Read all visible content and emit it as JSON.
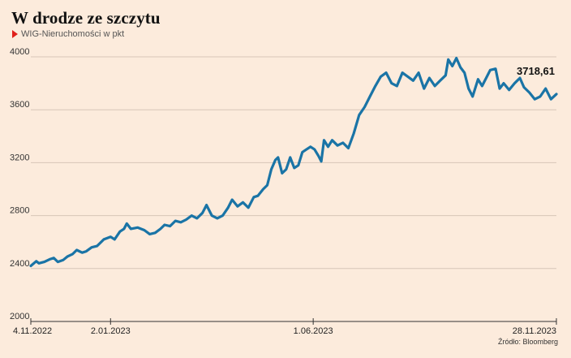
{
  "colors": {
    "background": "#fcebdc",
    "line": "#1a74a6",
    "grid": "#d7c6b8",
    "marker": "#e0201b"
  },
  "marker_icon": "red-triangle-icon",
  "chart_data": {
    "type": "line",
    "title": "W drodze ze szczytu",
    "subtitle": "WIG-Nieruchomości w pkt",
    "source": "Źródło: Bloomberg",
    "ylim": [
      2000,
      4000
    ],
    "yticks": [
      "4000",
      "3600",
      "3200",
      "2800",
      "2400",
      "2000"
    ],
    "ytick_values": [
      4000,
      3600,
      3200,
      2800,
      2400,
      2000
    ],
    "xlim": [
      "2022-11-04",
      "2023-11-28"
    ],
    "xticks": [
      {
        "label": "4.11.2022",
        "date": "2022-11-04"
      },
      {
        "label": "2.01.2023",
        "date": "2023-01-02"
      },
      {
        "label": "1.06.2023",
        "date": "2023-06-01"
      },
      {
        "label": "28.11.2023",
        "date": "2023-11-28"
      }
    ],
    "grid": true,
    "last_value_label": "3718,61",
    "series": [
      {
        "values": [
          {
            "x": "2022-11-04",
            "y": 2420
          },
          {
            "x": "2022-11-08",
            "y": 2455
          },
          {
            "x": "2022-11-10",
            "y": 2440
          },
          {
            "x": "2022-11-14",
            "y": 2450
          },
          {
            "x": "2022-11-18",
            "y": 2470
          },
          {
            "x": "2022-11-21",
            "y": 2480
          },
          {
            "x": "2022-11-24",
            "y": 2450
          },
          {
            "x": "2022-11-28",
            "y": 2465
          },
          {
            "x": "2022-12-01",
            "y": 2490
          },
          {
            "x": "2022-12-05",
            "y": 2510
          },
          {
            "x": "2022-12-08",
            "y": 2540
          },
          {
            "x": "2022-12-12",
            "y": 2520
          },
          {
            "x": "2022-12-15",
            "y": 2530
          },
          {
            "x": "2022-12-19",
            "y": 2560
          },
          {
            "x": "2022-12-23",
            "y": 2570
          },
          {
            "x": "2022-12-28",
            "y": 2620
          },
          {
            "x": "2023-01-02",
            "y": 2640
          },
          {
            "x": "2023-01-05",
            "y": 2620
          },
          {
            "x": "2023-01-09",
            "y": 2680
          },
          {
            "x": "2023-01-12",
            "y": 2700
          },
          {
            "x": "2023-01-14",
            "y": 2740
          },
          {
            "x": "2023-01-17",
            "y": 2700
          },
          {
            "x": "2023-01-22",
            "y": 2710
          },
          {
            "x": "2023-01-27",
            "y": 2690
          },
          {
            "x": "2023-01-31",
            "y": 2660
          },
          {
            "x": "2023-02-04",
            "y": 2670
          },
          {
            "x": "2023-02-08",
            "y": 2700
          },
          {
            "x": "2023-02-11",
            "y": 2730
          },
          {
            "x": "2023-02-15",
            "y": 2720
          },
          {
            "x": "2023-02-19",
            "y": 2760
          },
          {
            "x": "2023-02-23",
            "y": 2750
          },
          {
            "x": "2023-02-27",
            "y": 2770
          },
          {
            "x": "2023-03-03",
            "y": 2800
          },
          {
            "x": "2023-03-07",
            "y": 2780
          },
          {
            "x": "2023-03-11",
            "y": 2820
          },
          {
            "x": "2023-03-14",
            "y": 2880
          },
          {
            "x": "2023-03-18",
            "y": 2800
          },
          {
            "x": "2023-03-22",
            "y": 2780
          },
          {
            "x": "2023-03-26",
            "y": 2800
          },
          {
            "x": "2023-03-30",
            "y": 2860
          },
          {
            "x": "2023-04-02",
            "y": 2920
          },
          {
            "x": "2023-04-06",
            "y": 2870
          },
          {
            "x": "2023-04-10",
            "y": 2900
          },
          {
            "x": "2023-04-14",
            "y": 2860
          },
          {
            "x": "2023-04-18",
            "y": 2940
          },
          {
            "x": "2023-04-21",
            "y": 2950
          },
          {
            "x": "2023-04-25",
            "y": 3000
          },
          {
            "x": "2023-04-28",
            "y": 3030
          },
          {
            "x": "2023-05-01",
            "y": 3150
          },
          {
            "x": "2023-05-04",
            "y": 3220
          },
          {
            "x": "2023-05-06",
            "y": 3240
          },
          {
            "x": "2023-05-09",
            "y": 3120
          },
          {
            "x": "2023-05-12",
            "y": 3150
          },
          {
            "x": "2023-05-15",
            "y": 3240
          },
          {
            "x": "2023-05-18",
            "y": 3160
          },
          {
            "x": "2023-05-21",
            "y": 3180
          },
          {
            "x": "2023-05-24",
            "y": 3280
          },
          {
            "x": "2023-05-27",
            "y": 3300
          },
          {
            "x": "2023-05-30",
            "y": 3320
          },
          {
            "x": "2023-06-02",
            "y": 3300
          },
          {
            "x": "2023-06-05",
            "y": 3250
          },
          {
            "x": "2023-06-07",
            "y": 3210
          },
          {
            "x": "2023-06-09",
            "y": 3370
          },
          {
            "x": "2023-06-12",
            "y": 3320
          },
          {
            "x": "2023-06-15",
            "y": 3370
          },
          {
            "x": "2023-06-19",
            "y": 3330
          },
          {
            "x": "2023-06-23",
            "y": 3350
          },
          {
            "x": "2023-06-27",
            "y": 3310
          },
          {
            "x": "2023-07-01",
            "y": 3420
          },
          {
            "x": "2023-07-05",
            "y": 3560
          },
          {
            "x": "2023-07-09",
            "y": 3620
          },
          {
            "x": "2023-07-13",
            "y": 3700
          },
          {
            "x": "2023-07-17",
            "y": 3780
          },
          {
            "x": "2023-07-21",
            "y": 3850
          },
          {
            "x": "2023-07-25",
            "y": 3880
          },
          {
            "x": "2023-07-29",
            "y": 3800
          },
          {
            "x": "2023-08-02",
            "y": 3780
          },
          {
            "x": "2023-08-06",
            "y": 3880
          },
          {
            "x": "2023-08-10",
            "y": 3850
          },
          {
            "x": "2023-08-14",
            "y": 3820
          },
          {
            "x": "2023-08-18",
            "y": 3880
          },
          {
            "x": "2023-08-22",
            "y": 3760
          },
          {
            "x": "2023-08-26",
            "y": 3840
          },
          {
            "x": "2023-08-30",
            "y": 3780
          },
          {
            "x": "2023-09-03",
            "y": 3820
          },
          {
            "x": "2023-09-07",
            "y": 3860
          },
          {
            "x": "2023-09-09",
            "y": 3980
          },
          {
            "x": "2023-09-12",
            "y": 3930
          },
          {
            "x": "2023-09-15",
            "y": 3990
          },
          {
            "x": "2023-09-18",
            "y": 3920
          },
          {
            "x": "2023-09-21",
            "y": 3880
          },
          {
            "x": "2023-09-24",
            "y": 3760
          },
          {
            "x": "2023-09-27",
            "y": 3700
          },
          {
            "x": "2023-10-01",
            "y": 3830
          },
          {
            "x": "2023-10-04",
            "y": 3780
          },
          {
            "x": "2023-10-07",
            "y": 3840
          },
          {
            "x": "2023-10-10",
            "y": 3900
          },
          {
            "x": "2023-10-14",
            "y": 3910
          },
          {
            "x": "2023-10-17",
            "y": 3760
          },
          {
            "x": "2023-10-20",
            "y": 3800
          },
          {
            "x": "2023-10-24",
            "y": 3750
          },
          {
            "x": "2023-10-28",
            "y": 3800
          },
          {
            "x": "2023-11-01",
            "y": 3840
          },
          {
            "x": "2023-11-04",
            "y": 3770
          },
          {
            "x": "2023-11-08",
            "y": 3730
          },
          {
            "x": "2023-11-12",
            "y": 3680
          },
          {
            "x": "2023-11-16",
            "y": 3700
          },
          {
            "x": "2023-11-20",
            "y": 3760
          },
          {
            "x": "2023-11-24",
            "y": 3680
          },
          {
            "x": "2023-11-28",
            "y": 3718.61
          }
        ]
      }
    ]
  }
}
